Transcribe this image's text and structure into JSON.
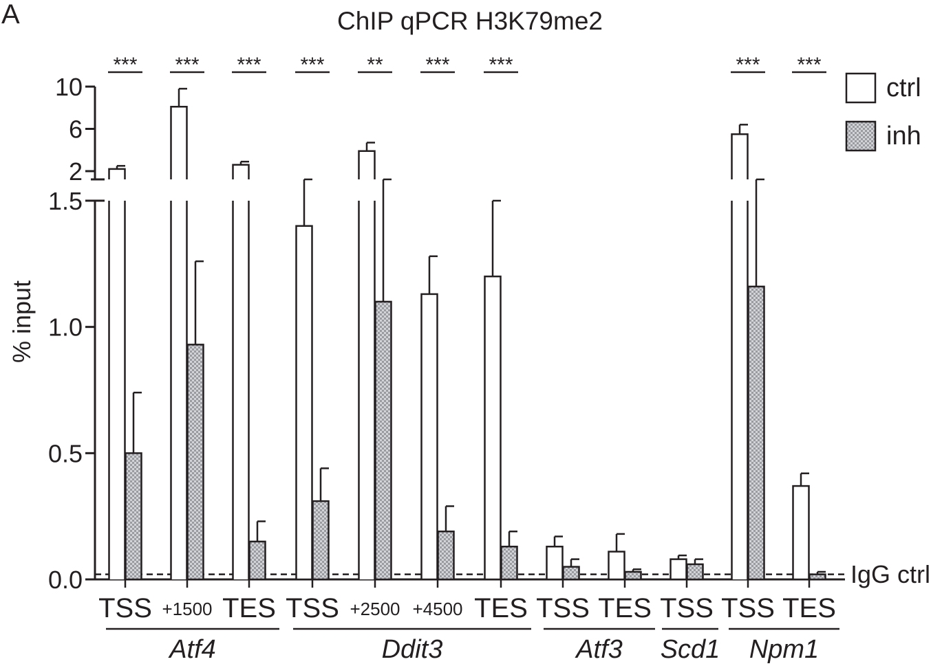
{
  "panel_letter": "A",
  "chart_data": {
    "type": "bar",
    "title": "ChIP qPCR H3K79me2",
    "ylabel": "% input",
    "ylim_lower": [
      0,
      1.5
    ],
    "ylim_upper": [
      2,
      10
    ],
    "yticks_lower": [
      "0.0",
      "0.5",
      "1.0",
      "1.5"
    ],
    "yticks_upper": [
      "2",
      "6",
      "10"
    ],
    "reference_line": {
      "label": "IgG ctrl",
      "value": 0.02
    },
    "categories": [
      "TSS",
      "+1500",
      "TES",
      "TSS",
      "+2500",
      "+4500",
      "TES",
      "TSS",
      "TES",
      "TSS",
      "TSS",
      "TES"
    ],
    "genes": [
      {
        "name": "Atf4",
        "sites": [
          0,
          1,
          2
        ]
      },
      {
        "name": "Ddit3",
        "sites": [
          3,
          4,
          5,
          6
        ]
      },
      {
        "name": "Atf3",
        "sites": [
          7,
          8
        ]
      },
      {
        "name": "Scd1",
        "sites": [
          9
        ]
      },
      {
        "name": "Npm1",
        "sites": [
          10,
          11
        ]
      }
    ],
    "series": [
      {
        "name": "ctrl",
        "values": [
          2.2,
          8.1,
          2.6,
          1.4,
          3.9,
          1.13,
          1.2,
          0.13,
          0.11,
          0.08,
          5.5,
          0.37
        ],
        "errors": [
          0.3,
          1.7,
          0.3,
          0.3,
          0.8,
          0.15,
          0.3,
          0.04,
          0.07,
          0.015,
          0.9,
          0.05
        ]
      },
      {
        "name": "inh",
        "values": [
          0.5,
          0.93,
          0.15,
          0.31,
          1.1,
          0.19,
          0.13,
          0.05,
          0.03,
          0.06,
          1.16,
          0.02
        ],
        "errors": [
          0.24,
          0.33,
          0.08,
          0.13,
          0.6,
          0.1,
          0.06,
          0.03,
          0.01,
          0.02,
          0.6,
          0.01
        ]
      }
    ],
    "significance": [
      "***",
      "***",
      "***",
      "***",
      "**",
      "***",
      "***",
      "",
      "",
      "",
      "***",
      "***"
    ],
    "legend": [
      "ctrl",
      "inh"
    ],
    "legend_position": "top-right",
    "colors": {
      "ctrl": "#ffffff",
      "inh": "#b3b4b8",
      "ink": "#231f20"
    }
  }
}
